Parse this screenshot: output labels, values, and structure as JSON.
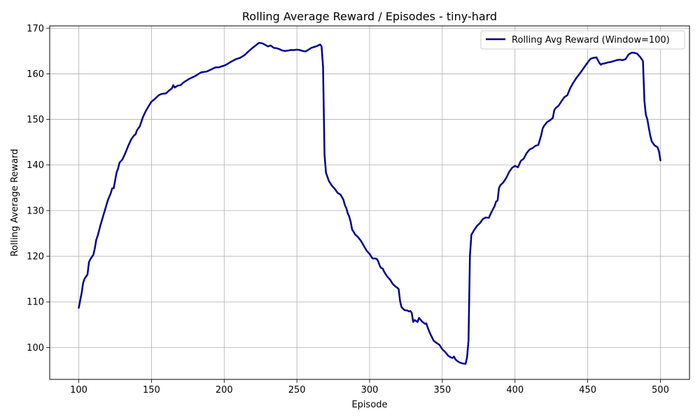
{
  "chart_data": {
    "type": "line",
    "title": "Rolling Average Reward / Episodes - tiny-hard",
    "xlabel": "Episode",
    "ylabel": "Rolling Average Reward",
    "xlim": [
      80,
      520
    ],
    "ylim": [
      93,
      170.5
    ],
    "xticks": [
      100,
      150,
      200,
      250,
      300,
      350,
      400,
      450,
      500
    ],
    "yticks": [
      100,
      110,
      120,
      130,
      140,
      150,
      160,
      170
    ],
    "grid": true,
    "legend_position": "top-right",
    "colors": {
      "line": "#00008b",
      "grid": "#b0b0b0"
    },
    "series": [
      {
        "name": "Rolling Avg Reward (Window=100)",
        "x": [
          100,
          102,
          103,
          104,
          106,
          107,
          108,
          110,
          111,
          112,
          113,
          115,
          117,
          118,
          120,
          122,
          123,
          124,
          126,
          127,
          128,
          130,
          132,
          134,
          136,
          138,
          139,
          140,
          142,
          144,
          146,
          148,
          150,
          152,
          155,
          157,
          160,
          162,
          164,
          165,
          166,
          168,
          170,
          172,
          174,
          176,
          178,
          180,
          182,
          184,
          186,
          188,
          190,
          192,
          194,
          196,
          198,
          200,
          202,
          205,
          208,
          211,
          214,
          217,
          220,
          222,
          224,
          226,
          228,
          230,
          232,
          234,
          236,
          238,
          240,
          242,
          244,
          246,
          248,
          250,
          252,
          254,
          256,
          258,
          260,
          262,
          264,
          265,
          266,
          267,
          268,
          269,
          270,
          272,
          274,
          276,
          278,
          280,
          282,
          283,
          284,
          285,
          286,
          287,
          288,
          289,
          290,
          292,
          294,
          296,
          298,
          300,
          302,
          304,
          305,
          306,
          307,
          308,
          309,
          310,
          312,
          314,
          316,
          318,
          319,
          320,
          321,
          322,
          324,
          326,
          327,
          328,
          329,
          330,
          331,
          332,
          333,
          334,
          336,
          338,
          339,
          340,
          342,
          344,
          346,
          348,
          350,
          352,
          354,
          356,
          357,
          358,
          359,
          360,
          362,
          364,
          366,
          367,
          368,
          369,
          370,
          372,
          374,
          376,
          378,
          380,
          382,
          384,
          386,
          387,
          388,
          389,
          390,
          392,
          394,
          396,
          398,
          400,
          402,
          404,
          406,
          408,
          410,
          412,
          414,
          416,
          418,
          419,
          420,
          421,
          422,
          424,
          426,
          427,
          428,
          430,
          432,
          434,
          436,
          438,
          440,
          442,
          444,
          446,
          448,
          450,
          452,
          454,
          456,
          457,
          458,
          459,
          460,
          462,
          464,
          466,
          468,
          470,
          472,
          474,
          476,
          478,
          480,
          482,
          484,
          486,
          488,
          489,
          490,
          491,
          492,
          493,
          494,
          496,
          498,
          499,
          500
        ],
        "values": [
          108.7,
          112.0,
          114.2,
          115.1,
          116.0,
          118.7,
          119.4,
          120.3,
          121.7,
          123.6,
          124.5,
          126.9,
          129.1,
          130.1,
          132.3,
          133.8,
          134.9,
          134.9,
          138.4,
          139.2,
          140.5,
          141.2,
          142.6,
          144.2,
          145.6,
          146.5,
          146.7,
          147.6,
          148.5,
          150.4,
          151.8,
          152.9,
          153.9,
          154.4,
          155.3,
          155.6,
          155.7,
          156.3,
          156.8,
          157.5,
          157.0,
          157.4,
          157.5,
          158.1,
          158.5,
          158.9,
          159.2,
          159.5,
          159.9,
          160.3,
          160.4,
          160.5,
          160.8,
          161.1,
          161.4,
          161.4,
          161.6,
          161.8,
          162.1,
          162.7,
          163.2,
          163.5,
          164.1,
          165.0,
          165.8,
          166.3,
          166.8,
          166.7,
          166.4,
          166.0,
          166.2,
          165.7,
          165.6,
          165.4,
          165.1,
          165.0,
          165.1,
          165.2,
          165.2,
          165.3,
          165.2,
          165.0,
          164.9,
          165.3,
          165.7,
          165.9,
          166.1,
          166.3,
          166.4,
          166.0,
          161.5,
          142.2,
          138.3,
          136.5,
          135.5,
          134.8,
          133.9,
          133.5,
          132.4,
          131.2,
          130.5,
          129.4,
          128.7,
          127.5,
          125.8,
          125.4,
          124.8,
          124.2,
          123.4,
          122.3,
          121.2,
          120.5,
          119.5,
          119.5,
          119.4,
          118.8,
          117.9,
          117.4,
          117.3,
          116.6,
          115.6,
          114.9,
          113.9,
          113.3,
          113.1,
          112.8,
          110.1,
          108.8,
          108.2,
          108.1,
          107.9,
          108.0,
          107.6,
          105.6,
          106.0,
          105.8,
          105.6,
          106.5,
          105.7,
          105.2,
          105.3,
          104.3,
          102.8,
          101.5,
          101.0,
          100.6,
          99.6,
          99.0,
          98.2,
          97.8,
          97.7,
          98.0,
          97.4,
          97.1,
          96.7,
          96.5,
          96.4,
          97.8,
          101.5,
          120.0,
          124.7,
          125.8,
          126.7,
          127.3,
          128.2,
          128.5,
          128.4,
          129.8,
          131.0,
          132.0,
          132.2,
          135.0,
          135.6,
          136.2,
          137.2,
          138.5,
          139.4,
          139.8,
          139.5,
          140.9,
          141.4,
          142.6,
          143.4,
          143.7,
          144.2,
          144.4,
          146.5,
          148.0,
          148.6,
          149.0,
          149.4,
          149.8,
          150.3,
          152.0,
          152.5,
          153.0,
          154.0,
          154.9,
          155.3,
          156.9,
          158.0,
          159.0,
          159.8,
          160.7,
          161.6,
          162.5,
          163.3,
          163.5,
          163.6,
          163.0,
          162.4,
          162.0,
          162.2,
          162.3,
          162.5,
          162.6,
          162.8,
          163.0,
          163.1,
          163.0,
          163.2,
          164.2,
          164.6,
          164.6,
          164.4,
          163.7,
          162.8,
          154.0,
          151.0,
          150.0,
          148.2,
          146.5,
          145.2,
          144.3,
          143.9,
          143.0,
          141.0
        ]
      }
    ]
  }
}
